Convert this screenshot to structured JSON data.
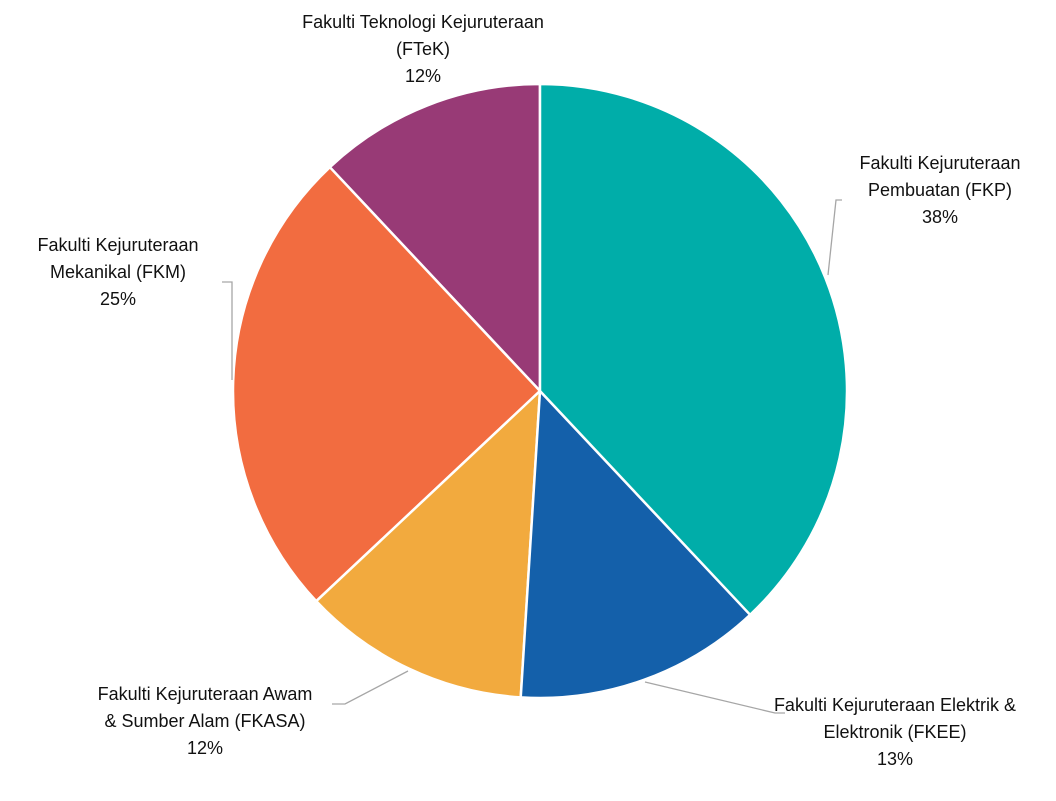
{
  "chart_data": {
    "type": "pie",
    "categories": [
      "Fakulti Kejuruteraan Pembuatan (FKP)",
      "Fakulti Kejuruteraan Elektrik & Elektronik (FKEE)",
      "Fakulti Kejuruteraan Awam & Sumber Alam (FKASA)",
      "Fakulti Kejuruteraan Mekanikal (FKM)",
      "Fakulti Teknologi Kejuruteraan (FTeK)"
    ],
    "values": [
      38,
      13,
      12,
      25,
      12
    ],
    "value_labels": [
      "38%",
      "13%",
      "12%",
      "25%",
      "12%"
    ],
    "colors": [
      "#00ada9",
      "#1460aa",
      "#f2aa3e",
      "#f26c40",
      "#983a76"
    ]
  }
}
